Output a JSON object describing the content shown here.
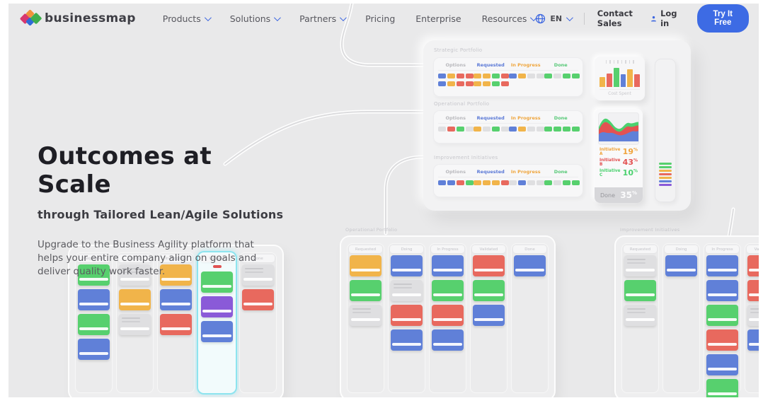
{
  "nav": {
    "brand": "businessmap",
    "items": [
      {
        "label": "Products",
        "dropdown": true
      },
      {
        "label": "Solutions",
        "dropdown": true
      },
      {
        "label": "Partners",
        "dropdown": true
      },
      {
        "label": "Pricing",
        "dropdown": false
      },
      {
        "label": "Enterprise",
        "dropdown": false
      },
      {
        "label": "Resources",
        "dropdown": true
      }
    ],
    "language": "EN",
    "contact_label": "Contact Sales",
    "login_label": "Log in",
    "cta_label": "Try It Free",
    "accent_color": "#3d6be4"
  },
  "hero": {
    "title": "Outcomes at Scale",
    "subtitle": "through Tailored Lean/Agile Solutions",
    "description": "Upgrade to the Business Agility platform that helps your entire company align on goals and deliver quality work faster."
  },
  "palette": {
    "g": "#57d06e",
    "b": "#6080d8",
    "o": "#f1b44a",
    "r": "#e8695e",
    "p": "#8a5ad8",
    "x": "#dfdfe1"
  },
  "dashboard": {
    "column_headers": [
      {
        "label": "Options",
        "color": "#b9b9bd"
      },
      {
        "label": "Requested",
        "color": "#5b79d6"
      },
      {
        "label": "In Progress",
        "color": "#efa63e"
      },
      {
        "label": "Done",
        "color": "#57c877"
      }
    ],
    "sections": [
      {
        "title": "Strategic Portfolio",
        "rows": [
          [
            [
              "b",
              "o",
              "r",
              "r"
            ],
            [
              "o",
              "o",
              "g",
              "r"
            ],
            [
              "b",
              "o",
              "x",
              "x"
            ],
            [
              "g",
              "x",
              "g",
              "g"
            ]
          ],
          [
            [
              "b",
              "o",
              "r",
              "r"
            ],
            [
              "o",
              "o",
              "g",
              "r"
            ]
          ]
        ]
      },
      {
        "title": "Operational Portfolio",
        "rows": [
          [
            [
              "x",
              "r",
              "g",
              "x"
            ],
            [
              "o",
              "x",
              "g",
              "x"
            ],
            [
              "b",
              "o",
              "x",
              "x"
            ],
            [
              "g",
              "g",
              "g",
              "g"
            ]
          ]
        ]
      },
      {
        "title": "Improvement Initiatives",
        "rows": [
          [
            [
              "b",
              "b",
              "r",
              "g"
            ],
            [
              "o",
              "o",
              "o",
              "r"
            ],
            [
              "x",
              "b",
              "x",
              "x"
            ],
            [
              "g",
              "x",
              "g",
              "g"
            ]
          ]
        ]
      }
    ],
    "cost_card": {
      "label": "Cost Spent",
      "bars": [
        {
          "c": "o",
          "h": 14
        },
        {
          "c": "r",
          "h": 19
        },
        {
          "c": "g",
          "h": 27
        },
        {
          "c": "b",
          "h": 18
        },
        {
          "c": "o",
          "h": 25
        },
        {
          "c": "r",
          "h": 18
        }
      ]
    },
    "stats": {
      "chart_data": {
        "type": "area",
        "series": [
          {
            "name": "Initiative A",
            "color": "#f0a43c",
            "value_pct": 19
          },
          {
            "name": "Initiative B",
            "color": "#e35252",
            "value_pct": 43
          },
          {
            "name": "Initiative C",
            "color": "#4bd16f",
            "value_pct": 10
          }
        ],
        "done": {
          "label": "Done",
          "value_pct": 35
        }
      },
      "rows": [
        {
          "label": "Initiative A",
          "value": "19",
          "unit": "%",
          "color": "#f0a43c"
        },
        {
          "label": "Initiative B",
          "value": "43",
          "unit": "%",
          "color": "#e35252"
        },
        {
          "label": "Initiative C",
          "value": "10",
          "unit": "%",
          "color": "#4bd16f"
        }
      ],
      "done_label": "Done",
      "done_value": "35",
      "done_unit": "%"
    },
    "tall_card_stripes": [
      "g",
      "g",
      "o",
      "r",
      "o",
      "b",
      "p"
    ]
  },
  "boards": [
    {
      "title": "",
      "columns": [
        {
          "label": "Requested",
          "cards": [
            "g",
            "b",
            "g",
            "b"
          ]
        },
        {
          "label": "Doing",
          "cards": [
            "x",
            "o",
            "x"
          ]
        },
        {
          "label": "In Progress",
          "cards": [
            "o",
            "b",
            "r"
          ]
        },
        {
          "label": "Validate",
          "highlight": true,
          "marker": true,
          "cards": [
            "g",
            "p",
            "b"
          ]
        },
        {
          "label": "Done",
          "cards": [
            "x",
            "r"
          ]
        }
      ]
    },
    {
      "title": "Operational Portfolio",
      "columns": [
        {
          "label": "Requested",
          "cards": [
            "o",
            "g",
            "x"
          ]
        },
        {
          "label": "Doing",
          "cards": [
            "b",
            "x",
            "r",
            "b"
          ]
        },
        {
          "label": "In Progress",
          "cards": [
            "b",
            "g",
            "r",
            "b"
          ]
        },
        {
          "label": "Validated",
          "cards": [
            "r",
            "g",
            "b"
          ]
        },
        {
          "label": "Done",
          "cards": [
            "b"
          ]
        }
      ]
    },
    {
      "title": "Improvement Initiatives",
      "columns": [
        {
          "label": "Requested",
          "cards": [
            "x",
            "g",
            "x"
          ]
        },
        {
          "label": "Doing",
          "cards": [
            "b"
          ]
        },
        {
          "label": "In Progress",
          "cards": [
            "b",
            "b",
            "g",
            "r",
            "b",
            "g"
          ]
        },
        {
          "label": "Validated",
          "cards": [
            "r",
            "r",
            "x",
            "b"
          ]
        }
      ]
    }
  ]
}
